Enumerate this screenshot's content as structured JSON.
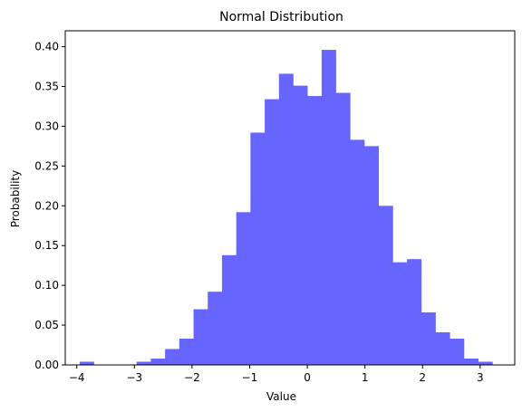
{
  "chart_data": {
    "type": "bar",
    "title": "Normal Distribution",
    "xlabel": "Value",
    "ylabel": "Probability",
    "xlim": [
      -4.2,
      3.6
    ],
    "ylim": [
      0,
      0.42
    ],
    "xticks": [
      -4,
      -3,
      -2,
      -1,
      0,
      1,
      2,
      3
    ],
    "xtick_labels": [
      "−4",
      "−3",
      "−2",
      "−1",
      "0",
      "1",
      "2",
      "3"
    ],
    "yticks": [
      0.0,
      0.05,
      0.1,
      0.15,
      0.2,
      0.25,
      0.3,
      0.35,
      0.4
    ],
    "ytick_labels": [
      "0.00",
      "0.05",
      "0.10",
      "0.15",
      "0.20",
      "0.25",
      "0.30",
      "0.35",
      "0.40"
    ],
    "grid": false,
    "bin_edges": [
      -3.95,
      -3.703,
      -3.456,
      -3.209,
      -2.962,
      -2.715,
      -2.468,
      -2.221,
      -1.974,
      -1.727,
      -1.48,
      -1.233,
      -0.986,
      -0.739,
      -0.492,
      -0.245,
      0.002,
      0.249,
      0.496,
      0.743,
      0.99,
      1.237,
      1.484,
      1.731,
      1.978,
      2.225,
      2.472,
      2.719,
      2.966,
      3.213
    ],
    "values": [
      0.004,
      0.0,
      0.0,
      0.0,
      0.004,
      0.008,
      0.02,
      0.033,
      0.07,
      0.092,
      0.138,
      0.192,
      0.292,
      0.334,
      0.366,
      0.351,
      0.338,
      0.396,
      0.342,
      0.283,
      0.275,
      0.2,
      0.129,
      0.133,
      0.066,
      0.041,
      0.033,
      0.008,
      0.004,
      0.012
    ],
    "color": "#6666ff"
  }
}
